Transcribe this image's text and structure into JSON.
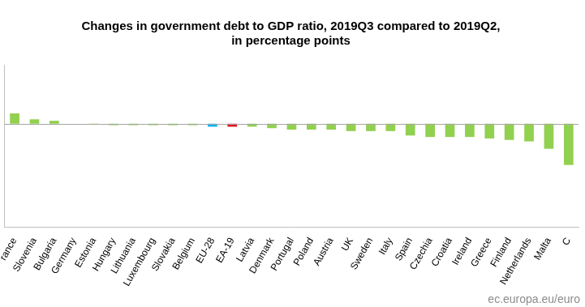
{
  "chart_data": {
    "type": "bar",
    "title": [
      "Changes in government debt to GDP ratio, 2019Q3 compared to 2019Q2,",
      "in percentage points"
    ],
    "source": "ec.europa.eu/euro",
    "categories": [
      "rance",
      "Slovenia",
      "Bulgaria",
      "Germany",
      "Estonia",
      "Hungary",
      "Lithuania",
      "Luxembourg",
      "Slovakia",
      "Belgium",
      "EU-28",
      "EA-19",
      "Latvia",
      "Denmark",
      "Portugal",
      "Poland",
      "Austria",
      "UK",
      "Sweden",
      "Italy",
      "Spain",
      "Czechia",
      "Croatia",
      "Ireland",
      "Greece",
      "Finland",
      "Netherlands",
      "Malta",
      "C"
    ],
    "values": [
      0.7,
      0.3,
      0.2,
      0.0,
      -0.05,
      -0.1,
      -0.1,
      -0.1,
      -0.1,
      -0.1,
      -0.2,
      -0.2,
      -0.2,
      -0.3,
      -0.4,
      -0.4,
      -0.4,
      -0.5,
      -0.5,
      -0.5,
      -0.8,
      -0.9,
      -0.9,
      -0.9,
      -1.0,
      -1.1,
      -1.2,
      -1.7,
      -2.8
    ],
    "colors": [
      "#92d050",
      "#92d050",
      "#92d050",
      "#92d050",
      "#92d050",
      "#92d050",
      "#92d050",
      "#92d050",
      "#92d050",
      "#92d050",
      "#00b0f0",
      "#e2001a",
      "#92d050",
      "#92d050",
      "#92d050",
      "#92d050",
      "#92d050",
      "#92d050",
      "#92d050",
      "#92d050",
      "#92d050",
      "#92d050",
      "#92d050",
      "#92d050",
      "#92d050",
      "#92d050",
      "#92d050",
      "#92d050",
      "#92d050"
    ],
    "ylim": [
      -7,
      4
    ],
    "grid": false,
    "tick_labels": "x"
  }
}
